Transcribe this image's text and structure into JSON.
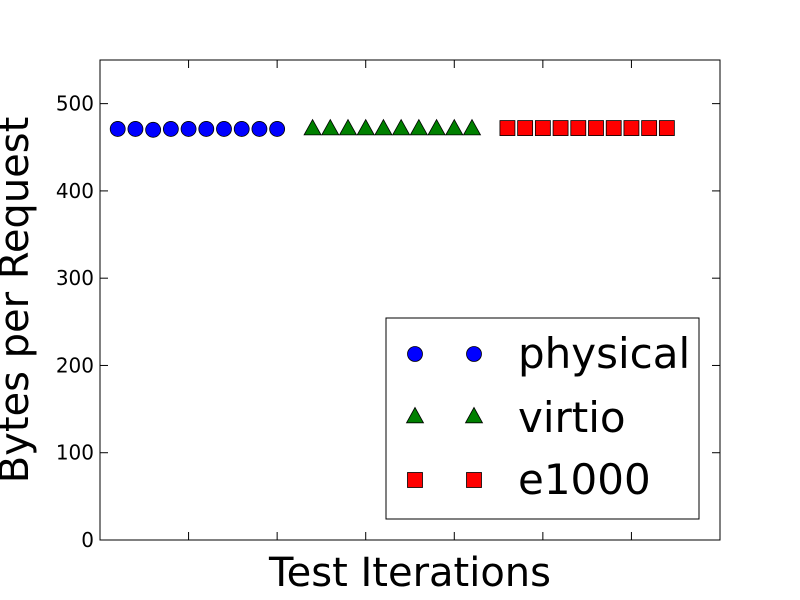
{
  "chart_data": {
    "type": "scatter",
    "title": "",
    "xlabel": "Test Iterations",
    "ylabel": "Bytes per Request",
    "ylim": [
      0,
      550
    ],
    "yticks": [
      0,
      100,
      200,
      300,
      400,
      500
    ],
    "grid": false,
    "legend_position": "lower-right",
    "series": [
      {
        "name": "physical",
        "marker": "circle",
        "color": "#0000ff",
        "x": [
          1,
          2,
          3,
          4,
          5,
          6,
          7,
          8,
          9,
          10
        ],
        "y": [
          471,
          471,
          470,
          471,
          471,
          471,
          471,
          471,
          471,
          471
        ]
      },
      {
        "name": "virtio",
        "marker": "triangle",
        "color": "#008000",
        "x": [
          12,
          13,
          14,
          15,
          16,
          17,
          18,
          19,
          20,
          21
        ],
        "y": [
          472,
          472,
          472,
          472,
          472,
          472,
          472,
          472,
          472,
          472
        ]
      },
      {
        "name": "e1000",
        "marker": "square",
        "color": "#ff0000",
        "x": [
          23,
          24,
          25,
          26,
          27,
          28,
          29,
          30,
          31,
          32
        ],
        "y": [
          472,
          472,
          472,
          472,
          472,
          472,
          472,
          472,
          472,
          472
        ]
      }
    ]
  }
}
